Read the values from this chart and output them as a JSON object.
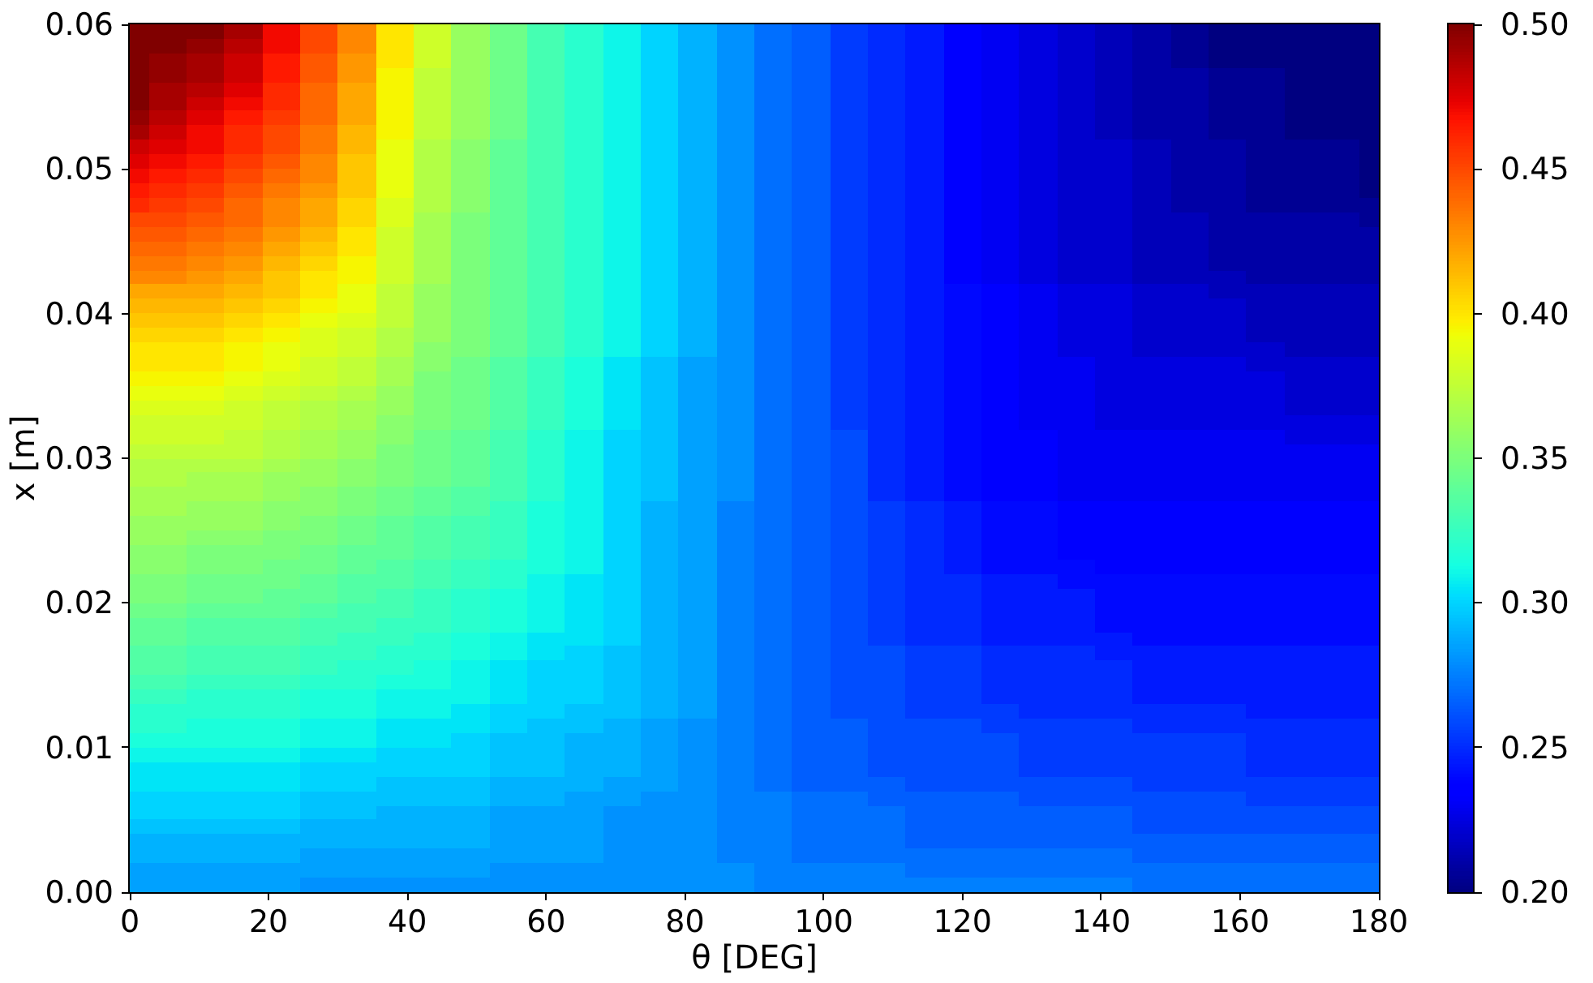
{
  "chart_data": {
    "type": "heatmap",
    "xlabel": "θ [DEG]",
    "ylabel": "x [m]",
    "xlim": [
      0,
      180
    ],
    "ylim": [
      0,
      0.06
    ],
    "xticks": [
      0,
      20,
      40,
      60,
      80,
      100,
      120,
      140,
      160,
      180
    ],
    "yticks": [
      {
        "value": 0,
        "label": "0.00"
      },
      {
        "value": 0.01,
        "label": "0.01"
      },
      {
        "value": 0.02,
        "label": "0.02"
      },
      {
        "value": 0.03,
        "label": "0.03"
      },
      {
        "value": 0.04,
        "label": "0.04"
      },
      {
        "value": 0.05,
        "label": "0.05"
      },
      {
        "value": 0.06,
        "label": "0.06"
      }
    ],
    "clim": [
      0.2,
      0.5
    ],
    "cticks": [
      {
        "value": 0.2,
        "label": "0.20"
      },
      {
        "value": 0.25,
        "label": "0.25"
      },
      {
        "value": 0.3,
        "label": "0.30"
      },
      {
        "value": 0.35,
        "label": "0.35"
      },
      {
        "value": 0.4,
        "label": "0.40"
      },
      {
        "value": 0.45,
        "label": "0.45"
      },
      {
        "value": 0.5,
        "label": "0.50"
      }
    ],
    "x": [
      0,
      5.5,
      10.9,
      16.4,
      21.8,
      27.3,
      32.7,
      38.2,
      43.6,
      49.1,
      54.5,
      60,
      65.5,
      70.9,
      76.4,
      81.8,
      87.3,
      92.7,
      98.2,
      103.6,
      109.1,
      114.5,
      120,
      125.5,
      130.9,
      136.4,
      141.8,
      147.3,
      152.7,
      158.2,
      163.6,
      169.1,
      174.5,
      180
    ],
    "y": [
      0.0595,
      0.0585,
      0.0575,
      0.0565,
      0.0555,
      0.0545,
      0.0535,
      0.0525,
      0.0515,
      0.0505,
      0.0495,
      0.0485,
      0.0475,
      0.0465,
      0.0455,
      0.0445,
      0.0435,
      0.0425,
      0.0415,
      0.0405,
      0.0395,
      0.0385,
      0.0375,
      0.0365,
      0.0355,
      0.0345,
      0.0335,
      0.0325,
      0.0315,
      0.0305,
      0.0295,
      0.0285,
      0.0275,
      0.0265,
      0.0255,
      0.0245,
      0.0235,
      0.0225,
      0.0215,
      0.0205,
      0.0195,
      0.0185,
      0.0175,
      0.0165,
      0.0155,
      0.0145,
      0.0135,
      0.0125,
      0.0115,
      0.0105,
      0.0095,
      0.0085,
      0.0075,
      0.0065,
      0.0055,
      0.0045,
      0.0035,
      0.0025,
      0.0015,
      0.0005
    ],
    "cells": [
      [
        0.5,
        0.5,
        0.5,
        0.49,
        0.47,
        0.45,
        0.43,
        0.4,
        0.38,
        0.36,
        0.345,
        0.33,
        0.32,
        0.31,
        0.3,
        0.29,
        0.28,
        0.27,
        0.265,
        0.255,
        0.25,
        0.245,
        0.235,
        0.23,
        0.225,
        0.22,
        0.215,
        0.21,
        0.205,
        0.2,
        0.2,
        0.2,
        0.2,
        0.2
      ],
      [
        0.5,
        0.5,
        0.495,
        0.485,
        0.47,
        0.45,
        0.43,
        0.4,
        0.38,
        0.36,
        0.345,
        0.33,
        0.32,
        0.31,
        0.3,
        0.29,
        0.28,
        0.27,
        0.265,
        0.255,
        0.25,
        0.245,
        0.235,
        0.23,
        0.225,
        0.22,
        0.215,
        0.21,
        0.205,
        0.2,
        0.2,
        0.2,
        0.2,
        0.2
      ],
      [
        0.5,
        0.495,
        0.49,
        0.48,
        0.465,
        0.445,
        0.425,
        0.4,
        0.38,
        0.36,
        0.345,
        0.33,
        0.32,
        0.31,
        0.3,
        0.29,
        0.28,
        0.27,
        0.265,
        0.255,
        0.25,
        0.245,
        0.235,
        0.23,
        0.225,
        0.22,
        0.215,
        0.21,
        0.205,
        0.2,
        0.2,
        0.2,
        0.2,
        0.2
      ],
      [
        0.5,
        0.495,
        0.49,
        0.48,
        0.465,
        0.445,
        0.425,
        0.395,
        0.375,
        0.36,
        0.345,
        0.33,
        0.32,
        0.31,
        0.3,
        0.29,
        0.28,
        0.27,
        0.265,
        0.255,
        0.25,
        0.245,
        0.235,
        0.23,
        0.225,
        0.22,
        0.215,
        0.21,
        0.21,
        0.205,
        0.205,
        0.2,
        0.2,
        0.2
      ],
      [
        0.5,
        0.49,
        0.485,
        0.475,
        0.46,
        0.44,
        0.42,
        0.395,
        0.375,
        0.36,
        0.345,
        0.33,
        0.32,
        0.31,
        0.3,
        0.29,
        0.28,
        0.27,
        0.265,
        0.255,
        0.25,
        0.245,
        0.235,
        0.23,
        0.225,
        0.22,
        0.215,
        0.21,
        0.21,
        0.205,
        0.205,
        0.2,
        0.2,
        0.2
      ],
      [
        0.5,
        0.49,
        0.48,
        0.47,
        0.46,
        0.44,
        0.42,
        0.395,
        0.375,
        0.36,
        0.345,
        0.33,
        0.32,
        0.31,
        0.3,
        0.29,
        0.28,
        0.27,
        0.265,
        0.255,
        0.25,
        0.245,
        0.235,
        0.23,
        0.225,
        0.22,
        0.215,
        0.21,
        0.21,
        0.205,
        0.205,
        0.2,
        0.2,
        0.2
      ],
      [
        0.495,
        0.485,
        0.475,
        0.465,
        0.455,
        0.44,
        0.42,
        0.395,
        0.375,
        0.36,
        0.345,
        0.33,
        0.32,
        0.31,
        0.3,
        0.29,
        0.28,
        0.27,
        0.265,
        0.255,
        0.25,
        0.245,
        0.235,
        0.23,
        0.225,
        0.22,
        0.215,
        0.21,
        0.21,
        0.205,
        0.205,
        0.2,
        0.2,
        0.2
      ],
      [
        0.49,
        0.48,
        0.47,
        0.46,
        0.45,
        0.435,
        0.415,
        0.395,
        0.375,
        0.36,
        0.345,
        0.33,
        0.32,
        0.31,
        0.3,
        0.29,
        0.28,
        0.27,
        0.265,
        0.255,
        0.25,
        0.245,
        0.235,
        0.23,
        0.225,
        0.22,
        0.215,
        0.21,
        0.21,
        0.205,
        0.205,
        0.2,
        0.2,
        0.2
      ],
      [
        0.48,
        0.475,
        0.47,
        0.46,
        0.45,
        0.435,
        0.415,
        0.39,
        0.37,
        0.355,
        0.34,
        0.33,
        0.32,
        0.31,
        0.3,
        0.29,
        0.28,
        0.27,
        0.265,
        0.255,
        0.25,
        0.245,
        0.235,
        0.23,
        0.225,
        0.22,
        0.22,
        0.215,
        0.21,
        0.21,
        0.205,
        0.205,
        0.205,
        0.2
      ],
      [
        0.475,
        0.47,
        0.465,
        0.455,
        0.445,
        0.43,
        0.41,
        0.39,
        0.37,
        0.355,
        0.34,
        0.33,
        0.32,
        0.31,
        0.3,
        0.29,
        0.28,
        0.27,
        0.265,
        0.255,
        0.25,
        0.245,
        0.235,
        0.23,
        0.225,
        0.22,
        0.22,
        0.215,
        0.21,
        0.21,
        0.205,
        0.205,
        0.205,
        0.2
      ],
      [
        0.47,
        0.465,
        0.46,
        0.45,
        0.44,
        0.43,
        0.41,
        0.39,
        0.37,
        0.355,
        0.34,
        0.33,
        0.32,
        0.31,
        0.3,
        0.29,
        0.28,
        0.27,
        0.265,
        0.255,
        0.25,
        0.245,
        0.235,
        0.23,
        0.225,
        0.22,
        0.22,
        0.215,
        0.21,
        0.21,
        0.205,
        0.205,
        0.205,
        0.2
      ],
      [
        0.465,
        0.46,
        0.455,
        0.445,
        0.435,
        0.425,
        0.41,
        0.39,
        0.37,
        0.355,
        0.34,
        0.33,
        0.32,
        0.31,
        0.3,
        0.29,
        0.28,
        0.27,
        0.265,
        0.255,
        0.25,
        0.245,
        0.235,
        0.23,
        0.225,
        0.22,
        0.22,
        0.215,
        0.21,
        0.21,
        0.205,
        0.205,
        0.205,
        0.2
      ],
      [
        0.46,
        0.455,
        0.45,
        0.44,
        0.43,
        0.42,
        0.405,
        0.385,
        0.37,
        0.355,
        0.34,
        0.33,
        0.32,
        0.31,
        0.3,
        0.29,
        0.28,
        0.27,
        0.265,
        0.255,
        0.25,
        0.245,
        0.235,
        0.23,
        0.225,
        0.22,
        0.22,
        0.215,
        0.21,
        0.21,
        0.205,
        0.205,
        0.205,
        0.205
      ],
      [
        0.45,
        0.45,
        0.445,
        0.44,
        0.43,
        0.42,
        0.405,
        0.385,
        0.365,
        0.35,
        0.34,
        0.33,
        0.32,
        0.31,
        0.3,
        0.29,
        0.28,
        0.27,
        0.265,
        0.255,
        0.25,
        0.245,
        0.235,
        0.23,
        0.225,
        0.22,
        0.22,
        0.215,
        0.215,
        0.21,
        0.21,
        0.21,
        0.21,
        0.205
      ],
      [
        0.445,
        0.445,
        0.44,
        0.435,
        0.425,
        0.415,
        0.4,
        0.38,
        0.365,
        0.35,
        0.34,
        0.33,
        0.32,
        0.31,
        0.3,
        0.29,
        0.28,
        0.27,
        0.265,
        0.255,
        0.25,
        0.245,
        0.235,
        0.23,
        0.225,
        0.22,
        0.22,
        0.215,
        0.215,
        0.21,
        0.21,
        0.21,
        0.21,
        0.21
      ],
      [
        0.44,
        0.44,
        0.435,
        0.43,
        0.42,
        0.41,
        0.4,
        0.38,
        0.365,
        0.35,
        0.34,
        0.33,
        0.32,
        0.31,
        0.3,
        0.29,
        0.28,
        0.27,
        0.265,
        0.255,
        0.25,
        0.245,
        0.235,
        0.23,
        0.225,
        0.22,
        0.22,
        0.215,
        0.215,
        0.21,
        0.21,
        0.21,
        0.21,
        0.21
      ],
      [
        0.435,
        0.435,
        0.43,
        0.425,
        0.415,
        0.405,
        0.395,
        0.38,
        0.365,
        0.35,
        0.34,
        0.33,
        0.32,
        0.31,
        0.3,
        0.29,
        0.28,
        0.27,
        0.265,
        0.255,
        0.25,
        0.245,
        0.235,
        0.23,
        0.225,
        0.22,
        0.22,
        0.215,
        0.215,
        0.21,
        0.21,
        0.21,
        0.21,
        0.21
      ],
      [
        0.43,
        0.43,
        0.425,
        0.42,
        0.41,
        0.4,
        0.395,
        0.38,
        0.365,
        0.35,
        0.34,
        0.33,
        0.32,
        0.31,
        0.3,
        0.29,
        0.28,
        0.27,
        0.265,
        0.255,
        0.25,
        0.245,
        0.235,
        0.23,
        0.225,
        0.22,
        0.22,
        0.215,
        0.215,
        0.215,
        0.21,
        0.21,
        0.21,
        0.21
      ],
      [
        0.42,
        0.42,
        0.42,
        0.415,
        0.41,
        0.4,
        0.39,
        0.375,
        0.36,
        0.35,
        0.34,
        0.33,
        0.32,
        0.31,
        0.3,
        0.29,
        0.28,
        0.27,
        0.265,
        0.255,
        0.25,
        0.245,
        0.24,
        0.235,
        0.23,
        0.225,
        0.225,
        0.22,
        0.22,
        0.215,
        0.215,
        0.215,
        0.215,
        0.215
      ],
      [
        0.415,
        0.415,
        0.415,
        0.41,
        0.405,
        0.395,
        0.39,
        0.375,
        0.36,
        0.35,
        0.34,
        0.33,
        0.32,
        0.31,
        0.3,
        0.29,
        0.28,
        0.27,
        0.265,
        0.255,
        0.25,
        0.245,
        0.24,
        0.235,
        0.23,
        0.225,
        0.225,
        0.22,
        0.22,
        0.22,
        0.215,
        0.215,
        0.215,
        0.215
      ],
      [
        0.41,
        0.41,
        0.41,
        0.405,
        0.4,
        0.39,
        0.385,
        0.375,
        0.36,
        0.35,
        0.34,
        0.33,
        0.32,
        0.31,
        0.3,
        0.29,
        0.28,
        0.27,
        0.265,
        0.255,
        0.25,
        0.245,
        0.24,
        0.235,
        0.23,
        0.225,
        0.225,
        0.22,
        0.22,
        0.22,
        0.215,
        0.215,
        0.215,
        0.215
      ],
      [
        0.405,
        0.405,
        0.405,
        0.4,
        0.395,
        0.385,
        0.38,
        0.37,
        0.36,
        0.35,
        0.34,
        0.33,
        0.32,
        0.31,
        0.3,
        0.29,
        0.28,
        0.27,
        0.265,
        0.255,
        0.25,
        0.245,
        0.24,
        0.235,
        0.23,
        0.225,
        0.225,
        0.22,
        0.22,
        0.22,
        0.215,
        0.215,
        0.215,
        0.215
      ],
      [
        0.4,
        0.4,
        0.4,
        0.395,
        0.39,
        0.385,
        0.38,
        0.37,
        0.355,
        0.35,
        0.34,
        0.33,
        0.32,
        0.31,
        0.3,
        0.29,
        0.28,
        0.27,
        0.265,
        0.255,
        0.25,
        0.245,
        0.24,
        0.235,
        0.23,
        0.225,
        0.225,
        0.22,
        0.22,
        0.22,
        0.22,
        0.215,
        0.215,
        0.215
      ],
      [
        0.4,
        0.4,
        0.4,
        0.395,
        0.39,
        0.38,
        0.375,
        0.365,
        0.355,
        0.345,
        0.335,
        0.325,
        0.315,
        0.305,
        0.295,
        0.285,
        0.28,
        0.27,
        0.265,
        0.255,
        0.25,
        0.245,
        0.24,
        0.235,
        0.23,
        0.23,
        0.225,
        0.225,
        0.225,
        0.225,
        0.22,
        0.22,
        0.22,
        0.22
      ],
      [
        0.395,
        0.395,
        0.395,
        0.39,
        0.385,
        0.38,
        0.375,
        0.365,
        0.35,
        0.345,
        0.335,
        0.325,
        0.315,
        0.305,
        0.295,
        0.285,
        0.28,
        0.27,
        0.265,
        0.255,
        0.25,
        0.245,
        0.24,
        0.235,
        0.23,
        0.23,
        0.225,
        0.225,
        0.225,
        0.225,
        0.225,
        0.22,
        0.22,
        0.22
      ],
      [
        0.39,
        0.39,
        0.39,
        0.385,
        0.38,
        0.375,
        0.37,
        0.36,
        0.35,
        0.345,
        0.335,
        0.325,
        0.315,
        0.305,
        0.295,
        0.285,
        0.28,
        0.27,
        0.265,
        0.255,
        0.25,
        0.245,
        0.24,
        0.235,
        0.23,
        0.23,
        0.225,
        0.225,
        0.225,
        0.225,
        0.225,
        0.22,
        0.22,
        0.22
      ],
      [
        0.385,
        0.385,
        0.385,
        0.38,
        0.375,
        0.37,
        0.365,
        0.36,
        0.35,
        0.345,
        0.335,
        0.325,
        0.315,
        0.305,
        0.295,
        0.285,
        0.28,
        0.27,
        0.265,
        0.255,
        0.25,
        0.245,
        0.24,
        0.235,
        0.23,
        0.23,
        0.225,
        0.225,
        0.225,
        0.225,
        0.225,
        0.22,
        0.22,
        0.22
      ],
      [
        0.38,
        0.38,
        0.38,
        0.38,
        0.375,
        0.37,
        0.365,
        0.355,
        0.35,
        0.345,
        0.335,
        0.325,
        0.315,
        0.305,
        0.295,
        0.285,
        0.28,
        0.27,
        0.265,
        0.255,
        0.25,
        0.245,
        0.24,
        0.235,
        0.23,
        0.23,
        0.225,
        0.225,
        0.225,
        0.225,
        0.225,
        0.225,
        0.225,
        0.225
      ],
      [
        0.38,
        0.38,
        0.38,
        0.375,
        0.37,
        0.365,
        0.36,
        0.355,
        0.345,
        0.34,
        0.33,
        0.32,
        0.31,
        0.3,
        0.295,
        0.285,
        0.28,
        0.27,
        0.265,
        0.26,
        0.25,
        0.245,
        0.24,
        0.235,
        0.235,
        0.23,
        0.23,
        0.23,
        0.23,
        0.23,
        0.23,
        0.225,
        0.225,
        0.225
      ],
      [
        0.375,
        0.375,
        0.375,
        0.375,
        0.37,
        0.365,
        0.36,
        0.35,
        0.345,
        0.34,
        0.33,
        0.32,
        0.31,
        0.3,
        0.295,
        0.285,
        0.28,
        0.27,
        0.265,
        0.26,
        0.25,
        0.245,
        0.24,
        0.235,
        0.235,
        0.23,
        0.23,
        0.23,
        0.23,
        0.23,
        0.23,
        0.23,
        0.23,
        0.23
      ],
      [
        0.37,
        0.37,
        0.37,
        0.37,
        0.365,
        0.36,
        0.355,
        0.35,
        0.345,
        0.34,
        0.33,
        0.32,
        0.31,
        0.3,
        0.295,
        0.285,
        0.28,
        0.27,
        0.265,
        0.26,
        0.25,
        0.245,
        0.24,
        0.235,
        0.235,
        0.23,
        0.23,
        0.23,
        0.23,
        0.23,
        0.23,
        0.23,
        0.23,
        0.23
      ],
      [
        0.37,
        0.37,
        0.365,
        0.365,
        0.36,
        0.36,
        0.355,
        0.35,
        0.345,
        0.34,
        0.33,
        0.32,
        0.31,
        0.3,
        0.295,
        0.285,
        0.28,
        0.27,
        0.265,
        0.26,
        0.25,
        0.245,
        0.24,
        0.235,
        0.235,
        0.23,
        0.23,
        0.23,
        0.23,
        0.23,
        0.23,
        0.23,
        0.23,
        0.23
      ],
      [
        0.365,
        0.365,
        0.365,
        0.365,
        0.36,
        0.355,
        0.35,
        0.345,
        0.34,
        0.335,
        0.33,
        0.32,
        0.31,
        0.3,
        0.295,
        0.285,
        0.28,
        0.27,
        0.265,
        0.26,
        0.25,
        0.245,
        0.24,
        0.235,
        0.235,
        0.23,
        0.23,
        0.23,
        0.23,
        0.23,
        0.23,
        0.23,
        0.23,
        0.23
      ],
      [
        0.365,
        0.365,
        0.36,
        0.36,
        0.355,
        0.355,
        0.35,
        0.345,
        0.34,
        0.335,
        0.325,
        0.315,
        0.31,
        0.3,
        0.29,
        0.285,
        0.275,
        0.27,
        0.265,
        0.26,
        0.255,
        0.25,
        0.245,
        0.24,
        0.24,
        0.235,
        0.235,
        0.235,
        0.235,
        0.235,
        0.235,
        0.235,
        0.235,
        0.235
      ],
      [
        0.36,
        0.36,
        0.36,
        0.36,
        0.355,
        0.35,
        0.345,
        0.34,
        0.335,
        0.33,
        0.325,
        0.315,
        0.31,
        0.3,
        0.29,
        0.285,
        0.275,
        0.27,
        0.265,
        0.26,
        0.255,
        0.25,
        0.245,
        0.24,
        0.24,
        0.235,
        0.235,
        0.235,
        0.235,
        0.235,
        0.235,
        0.235,
        0.235,
        0.235
      ],
      [
        0.36,
        0.36,
        0.355,
        0.355,
        0.35,
        0.35,
        0.345,
        0.34,
        0.335,
        0.33,
        0.325,
        0.315,
        0.31,
        0.3,
        0.29,
        0.285,
        0.275,
        0.27,
        0.265,
        0.26,
        0.255,
        0.25,
        0.245,
        0.24,
        0.24,
        0.235,
        0.235,
        0.235,
        0.235,
        0.235,
        0.235,
        0.235,
        0.235,
        0.235
      ],
      [
        0.355,
        0.355,
        0.35,
        0.35,
        0.35,
        0.345,
        0.34,
        0.34,
        0.335,
        0.33,
        0.325,
        0.315,
        0.31,
        0.3,
        0.29,
        0.285,
        0.275,
        0.27,
        0.265,
        0.26,
        0.255,
        0.25,
        0.245,
        0.24,
        0.24,
        0.235,
        0.235,
        0.235,
        0.235,
        0.235,
        0.235,
        0.235,
        0.235,
        0.235
      ],
      [
        0.355,
        0.355,
        0.35,
        0.35,
        0.345,
        0.345,
        0.34,
        0.335,
        0.33,
        0.325,
        0.32,
        0.315,
        0.31,
        0.3,
        0.29,
        0.285,
        0.275,
        0.27,
        0.265,
        0.26,
        0.255,
        0.25,
        0.245,
        0.24,
        0.24,
        0.24,
        0.235,
        0.235,
        0.235,
        0.235,
        0.235,
        0.235,
        0.235,
        0.235
      ],
      [
        0.35,
        0.35,
        0.345,
        0.345,
        0.345,
        0.34,
        0.335,
        0.335,
        0.33,
        0.325,
        0.32,
        0.31,
        0.305,
        0.3,
        0.29,
        0.285,
        0.275,
        0.27,
        0.265,
        0.26,
        0.255,
        0.25,
        0.25,
        0.245,
        0.245,
        0.24,
        0.24,
        0.24,
        0.24,
        0.24,
        0.24,
        0.24,
        0.24,
        0.24
      ],
      [
        0.35,
        0.35,
        0.345,
        0.345,
        0.34,
        0.34,
        0.335,
        0.33,
        0.325,
        0.32,
        0.315,
        0.31,
        0.305,
        0.3,
        0.29,
        0.285,
        0.275,
        0.27,
        0.265,
        0.26,
        0.255,
        0.25,
        0.25,
        0.245,
        0.245,
        0.245,
        0.24,
        0.24,
        0.24,
        0.24,
        0.24,
        0.24,
        0.24,
        0.24
      ],
      [
        0.345,
        0.345,
        0.34,
        0.34,
        0.34,
        0.335,
        0.33,
        0.33,
        0.325,
        0.32,
        0.315,
        0.31,
        0.305,
        0.3,
        0.29,
        0.285,
        0.275,
        0.27,
        0.265,
        0.26,
        0.255,
        0.25,
        0.25,
        0.245,
        0.245,
        0.245,
        0.24,
        0.24,
        0.24,
        0.24,
        0.24,
        0.24,
        0.24,
        0.24
      ],
      [
        0.34,
        0.34,
        0.335,
        0.335,
        0.335,
        0.33,
        0.33,
        0.325,
        0.325,
        0.32,
        0.315,
        0.31,
        0.305,
        0.3,
        0.29,
        0.285,
        0.275,
        0.27,
        0.265,
        0.26,
        0.255,
        0.25,
        0.25,
        0.245,
        0.245,
        0.245,
        0.24,
        0.24,
        0.24,
        0.24,
        0.24,
        0.24,
        0.24,
        0.24
      ],
      [
        0.34,
        0.34,
        0.335,
        0.335,
        0.335,
        0.33,
        0.325,
        0.325,
        0.32,
        0.315,
        0.31,
        0.305,
        0.305,
        0.3,
        0.29,
        0.285,
        0.275,
        0.27,
        0.265,
        0.26,
        0.255,
        0.25,
        0.25,
        0.245,
        0.245,
        0.245,
        0.245,
        0.24,
        0.24,
        0.24,
        0.24,
        0.24,
        0.24,
        0.24
      ],
      [
        0.335,
        0.335,
        0.33,
        0.33,
        0.33,
        0.325,
        0.325,
        0.32,
        0.32,
        0.315,
        0.31,
        0.305,
        0.3,
        0.295,
        0.29,
        0.285,
        0.275,
        0.27,
        0.265,
        0.26,
        0.26,
        0.255,
        0.255,
        0.25,
        0.25,
        0.25,
        0.245,
        0.245,
        0.245,
        0.245,
        0.245,
        0.245,
        0.245,
        0.245
      ],
      [
        0.335,
        0.335,
        0.33,
        0.33,
        0.33,
        0.325,
        0.32,
        0.32,
        0.315,
        0.31,
        0.305,
        0.3,
        0.3,
        0.295,
        0.29,
        0.285,
        0.275,
        0.27,
        0.265,
        0.26,
        0.26,
        0.255,
        0.255,
        0.25,
        0.25,
        0.25,
        0.25,
        0.245,
        0.245,
        0.245,
        0.245,
        0.245,
        0.245,
        0.245
      ],
      [
        0.33,
        0.33,
        0.325,
        0.325,
        0.325,
        0.32,
        0.32,
        0.315,
        0.315,
        0.31,
        0.305,
        0.3,
        0.3,
        0.295,
        0.29,
        0.285,
        0.275,
        0.27,
        0.265,
        0.26,
        0.26,
        0.255,
        0.255,
        0.25,
        0.25,
        0.25,
        0.25,
        0.245,
        0.245,
        0.245,
        0.245,
        0.245,
        0.245,
        0.245
      ],
      [
        0.325,
        0.325,
        0.32,
        0.32,
        0.32,
        0.315,
        0.315,
        0.31,
        0.31,
        0.31,
        0.305,
        0.3,
        0.3,
        0.295,
        0.29,
        0.285,
        0.275,
        0.27,
        0.265,
        0.26,
        0.26,
        0.255,
        0.255,
        0.25,
        0.25,
        0.25,
        0.25,
        0.245,
        0.245,
        0.245,
        0.245,
        0.245,
        0.245,
        0.245
      ],
      [
        0.32,
        0.32,
        0.32,
        0.32,
        0.32,
        0.315,
        0.315,
        0.31,
        0.31,
        0.305,
        0.3,
        0.3,
        0.295,
        0.295,
        0.29,
        0.285,
        0.275,
        0.27,
        0.265,
        0.26,
        0.26,
        0.255,
        0.255,
        0.255,
        0.25,
        0.25,
        0.25,
        0.25,
        0.25,
        0.25,
        0.245,
        0.245,
        0.245,
        0.245
      ],
      [
        0.32,
        0.32,
        0.315,
        0.315,
        0.315,
        0.31,
        0.31,
        0.305,
        0.305,
        0.305,
        0.3,
        0.295,
        0.295,
        0.29,
        0.285,
        0.28,
        0.275,
        0.27,
        0.265,
        0.265,
        0.26,
        0.26,
        0.26,
        0.255,
        0.255,
        0.255,
        0.255,
        0.25,
        0.25,
        0.25,
        0.25,
        0.25,
        0.25,
        0.25
      ],
      [
        0.315,
        0.315,
        0.315,
        0.315,
        0.315,
        0.31,
        0.31,
        0.305,
        0.305,
        0.3,
        0.295,
        0.295,
        0.29,
        0.29,
        0.285,
        0.28,
        0.275,
        0.27,
        0.265,
        0.265,
        0.26,
        0.26,
        0.26,
        0.26,
        0.255,
        0.255,
        0.255,
        0.255,
        0.255,
        0.255,
        0.25,
        0.25,
        0.25,
        0.25
      ],
      [
        0.31,
        0.31,
        0.31,
        0.31,
        0.31,
        0.305,
        0.305,
        0.3,
        0.3,
        0.3,
        0.295,
        0.295,
        0.29,
        0.29,
        0.285,
        0.28,
        0.275,
        0.27,
        0.265,
        0.265,
        0.26,
        0.26,
        0.26,
        0.26,
        0.255,
        0.255,
        0.255,
        0.255,
        0.255,
        0.255,
        0.25,
        0.25,
        0.25,
        0.25
      ],
      [
        0.305,
        0.305,
        0.305,
        0.305,
        0.305,
        0.3,
        0.3,
        0.3,
        0.3,
        0.3,
        0.295,
        0.295,
        0.29,
        0.29,
        0.285,
        0.28,
        0.275,
        0.27,
        0.265,
        0.265,
        0.26,
        0.26,
        0.26,
        0.26,
        0.255,
        0.255,
        0.255,
        0.255,
        0.255,
        0.255,
        0.25,
        0.25,
        0.25,
        0.25
      ],
      [
        0.305,
        0.305,
        0.305,
        0.305,
        0.305,
        0.3,
        0.3,
        0.295,
        0.295,
        0.295,
        0.29,
        0.29,
        0.29,
        0.285,
        0.285,
        0.28,
        0.275,
        0.27,
        0.265,
        0.265,
        0.265,
        0.26,
        0.26,
        0.26,
        0.26,
        0.26,
        0.26,
        0.255,
        0.255,
        0.255,
        0.255,
        0.255,
        0.255,
        0.255
      ],
      [
        0.3,
        0.3,
        0.3,
        0.3,
        0.3,
        0.295,
        0.295,
        0.295,
        0.295,
        0.295,
        0.29,
        0.29,
        0.285,
        0.285,
        0.28,
        0.28,
        0.275,
        0.275,
        0.27,
        0.27,
        0.265,
        0.265,
        0.265,
        0.265,
        0.26,
        0.26,
        0.26,
        0.26,
        0.26,
        0.26,
        0.255,
        0.255,
        0.255,
        0.255
      ],
      [
        0.3,
        0.3,
        0.3,
        0.3,
        0.3,
        0.295,
        0.295,
        0.29,
        0.29,
        0.29,
        0.285,
        0.285,
        0.285,
        0.28,
        0.28,
        0.28,
        0.275,
        0.275,
        0.27,
        0.27,
        0.27,
        0.265,
        0.265,
        0.265,
        0.265,
        0.265,
        0.265,
        0.26,
        0.26,
        0.26,
        0.26,
        0.26,
        0.26,
        0.26
      ],
      [
        0.295,
        0.295,
        0.295,
        0.295,
        0.295,
        0.29,
        0.29,
        0.29,
        0.29,
        0.29,
        0.285,
        0.285,
        0.285,
        0.28,
        0.28,
        0.28,
        0.275,
        0.275,
        0.27,
        0.27,
        0.27,
        0.265,
        0.265,
        0.265,
        0.265,
        0.265,
        0.265,
        0.26,
        0.26,
        0.26,
        0.26,
        0.26,
        0.26,
        0.26
      ],
      [
        0.29,
        0.29,
        0.29,
        0.29,
        0.29,
        0.29,
        0.29,
        0.29,
        0.29,
        0.29,
        0.285,
        0.285,
        0.285,
        0.28,
        0.28,
        0.28,
        0.275,
        0.275,
        0.27,
        0.27,
        0.27,
        0.265,
        0.265,
        0.265,
        0.265,
        0.265,
        0.265,
        0.265,
        0.265,
        0.265,
        0.265,
        0.265,
        0.265,
        0.265
      ],
      [
        0.29,
        0.29,
        0.29,
        0.29,
        0.29,
        0.285,
        0.285,
        0.285,
        0.285,
        0.285,
        0.285,
        0.285,
        0.285,
        0.28,
        0.28,
        0.28,
        0.275,
        0.275,
        0.27,
        0.27,
        0.27,
        0.27,
        0.27,
        0.27,
        0.27,
        0.27,
        0.27,
        0.265,
        0.265,
        0.265,
        0.265,
        0.265,
        0.265,
        0.265
      ],
      [
        0.285,
        0.285,
        0.285,
        0.285,
        0.285,
        0.285,
        0.285,
        0.285,
        0.285,
        0.285,
        0.28,
        0.28,
        0.28,
        0.28,
        0.28,
        0.28,
        0.28,
        0.275,
        0.275,
        0.275,
        0.275,
        0.27,
        0.27,
        0.27,
        0.27,
        0.27,
        0.27,
        0.27,
        0.27,
        0.27,
        0.27,
        0.27,
        0.27,
        0.27
      ],
      [
        0.285,
        0.285,
        0.285,
        0.285,
        0.285,
        0.28,
        0.28,
        0.28,
        0.28,
        0.28,
        0.28,
        0.28,
        0.28,
        0.28,
        0.28,
        0.28,
        0.28,
        0.275,
        0.275,
        0.275,
        0.275,
        0.275,
        0.275,
        0.275,
        0.275,
        0.275,
        0.275,
        0.27,
        0.27,
        0.27,
        0.27,
        0.27,
        0.27,
        0.27
      ]
    ]
  }
}
